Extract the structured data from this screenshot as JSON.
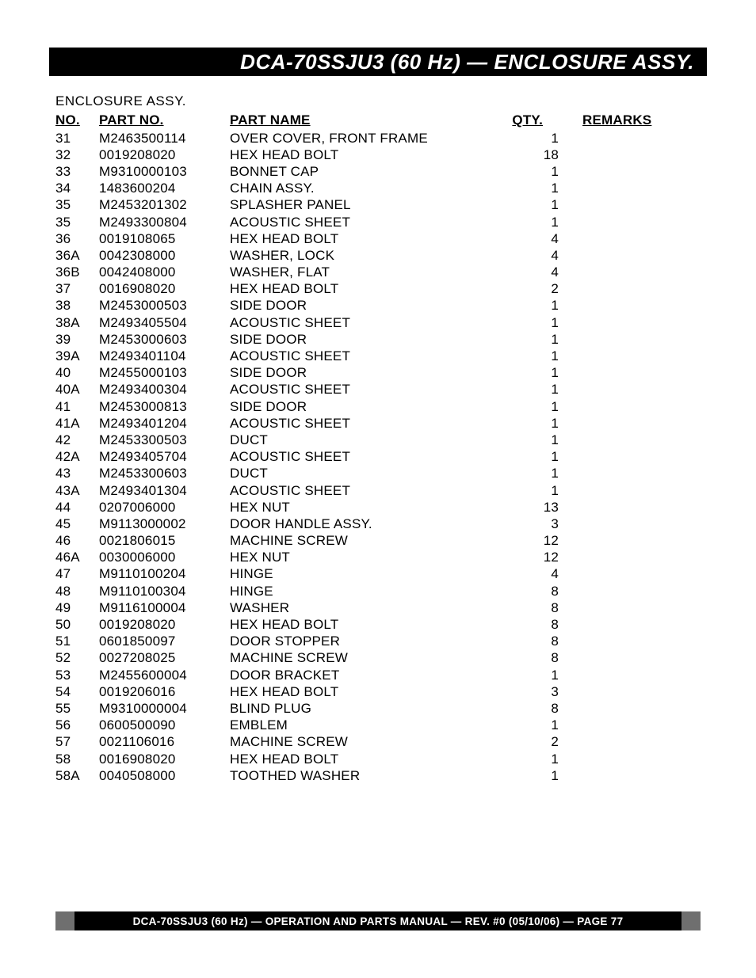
{
  "header": {
    "title": "DCA-70SSJU3 (60 Hz)  — ENCLOSURE  ASSY."
  },
  "section_title": "ENCLOSURE ASSY.",
  "columns": {
    "no": "NO.",
    "part_no": "PART NO.",
    "part_name": "PART NAME",
    "qty": "QTY.",
    "remarks": "REMARKS"
  },
  "rows": [
    {
      "no": "31",
      "part_no": "M2463500114",
      "part_name": "OVER COVER, FRONT FRAME",
      "qty": "1",
      "remarks": ""
    },
    {
      "no": "32",
      "part_no": "0019208020",
      "part_name": "HEX HEAD BOLT",
      "qty": "18",
      "remarks": ""
    },
    {
      "no": "33",
      "part_no": "M9310000103",
      "part_name": "BONNET CAP",
      "qty": "1",
      "remarks": ""
    },
    {
      "no": "34",
      "part_no": "1483600204",
      "part_name": "CHAIN ASSY.",
      "qty": "1",
      "remarks": ""
    },
    {
      "no": "35",
      "part_no": "M2453201302",
      "part_name": "SPLASHER PANEL",
      "qty": "1",
      "remarks": ""
    },
    {
      "no": "35",
      "part_no": "M2493300804",
      "part_name": "ACOUSTIC SHEET",
      "qty": "1",
      "remarks": ""
    },
    {
      "no": "36",
      "part_no": "0019108065",
      "part_name": "HEX HEAD BOLT",
      "qty": "4",
      "remarks": ""
    },
    {
      "no": "36A",
      "part_no": "0042308000",
      "part_name": "WASHER, LOCK",
      "qty": "4",
      "remarks": ""
    },
    {
      "no": "36B",
      "part_no": "0042408000",
      "part_name": "WASHER, FLAT",
      "qty": "4",
      "remarks": ""
    },
    {
      "no": "37",
      "part_no": "0016908020",
      "part_name": "HEX HEAD BOLT",
      "qty": "2",
      "remarks": ""
    },
    {
      "no": "38",
      "part_no": "M2453000503",
      "part_name": "SIDE DOOR",
      "qty": "1",
      "remarks": ""
    },
    {
      "no": "38A",
      "part_no": "M2493405504",
      "part_name": "ACOUSTIC SHEET",
      "qty": "1",
      "remarks": ""
    },
    {
      "no": "39",
      "part_no": "M2453000603",
      "part_name": "SIDE DOOR",
      "qty": "1",
      "remarks": ""
    },
    {
      "no": "39A",
      "part_no": "M2493401104",
      "part_name": "ACOUSTIC SHEET",
      "qty": "1",
      "remarks": ""
    },
    {
      "no": "40",
      "part_no": "M2455000103",
      "part_name": "SIDE DOOR",
      "qty": "1",
      "remarks": ""
    },
    {
      "no": "40A",
      "part_no": "M2493400304",
      "part_name": "ACOUSTIC SHEET",
      "qty": "1",
      "remarks": ""
    },
    {
      "no": "41",
      "part_no": "M2453000813",
      "part_name": "SIDE DOOR",
      "qty": "1",
      "remarks": ""
    },
    {
      "no": "41A",
      "part_no": "M2493401204",
      "part_name": "ACOUSTIC SHEET",
      "qty": "1",
      "remarks": ""
    },
    {
      "no": "42",
      "part_no": "M2453300503",
      "part_name": "DUCT",
      "qty": "1",
      "remarks": ""
    },
    {
      "no": "42A",
      "part_no": "M2493405704",
      "part_name": "ACOUSTIC SHEET",
      "qty": "1",
      "remarks": ""
    },
    {
      "no": "43",
      "part_no": "M2453300603",
      "part_name": "DUCT",
      "qty": "1",
      "remarks": ""
    },
    {
      "no": "43A",
      "part_no": "M2493401304",
      "part_name": "ACOUSTIC SHEET",
      "qty": "1",
      "remarks": ""
    },
    {
      "no": "44",
      "part_no": "0207006000",
      "part_name": "HEX NUT",
      "qty": "13",
      "remarks": ""
    },
    {
      "no": "45",
      "part_no": "M9113000002",
      "part_name": "DOOR HANDLE ASSY.",
      "qty": "3",
      "remarks": ""
    },
    {
      "no": "46",
      "part_no": "0021806015",
      "part_name": "MACHINE SCREW",
      "qty": "12",
      "remarks": ""
    },
    {
      "no": "46A",
      "part_no": "0030006000",
      "part_name": "HEX NUT",
      "qty": "12",
      "remarks": ""
    },
    {
      "no": "47",
      "part_no": "M9110100204",
      "part_name": "HINGE",
      "qty": "4",
      "remarks": ""
    },
    {
      "no": "48",
      "part_no": "M9110100304",
      "part_name": "HINGE",
      "qty": "8",
      "remarks": ""
    },
    {
      "no": "49",
      "part_no": "M9116100004",
      "part_name": "WASHER",
      "qty": "8",
      "remarks": ""
    },
    {
      "no": "50",
      "part_no": "0019208020",
      "part_name": "HEX HEAD BOLT",
      "qty": "8",
      "remarks": ""
    },
    {
      "no": "51",
      "part_no": "0601850097",
      "part_name": "DOOR STOPPER",
      "qty": "8",
      "remarks": ""
    },
    {
      "no": "52",
      "part_no": "0027208025",
      "part_name": "MACHINE SCREW",
      "qty": "8",
      "remarks": ""
    },
    {
      "no": "53",
      "part_no": "M2455600004",
      "part_name": "DOOR BRACKET",
      "qty": "1",
      "remarks": ""
    },
    {
      "no": "54",
      "part_no": "0019206016",
      "part_name": "HEX HEAD BOLT",
      "qty": "3",
      "remarks": ""
    },
    {
      "no": "55",
      "part_no": "M9310000004",
      "part_name": "BLIND PLUG",
      "qty": "8",
      "remarks": ""
    },
    {
      "no": "56",
      "part_no": "0600500090",
      "part_name": "EMBLEM",
      "qty": "1",
      "remarks": ""
    },
    {
      "no": "57",
      "part_no": "0021106016",
      "part_name": "MACHINE SCREW",
      "qty": "2",
      "remarks": ""
    },
    {
      "no": "58",
      "part_no": "0016908020",
      "part_name": "HEX HEAD BOLT",
      "qty": "1",
      "remarks": ""
    },
    {
      "no": "58A",
      "part_no": "0040508000",
      "part_name": "TOOTHED WASHER",
      "qty": "1",
      "remarks": ""
    }
  ],
  "footer": {
    "text": "DCA-70SSJU3 (60 Hz) — OPERATION AND PARTS MANUAL — REV. #0  (05/10/06) — PAGE 77"
  }
}
